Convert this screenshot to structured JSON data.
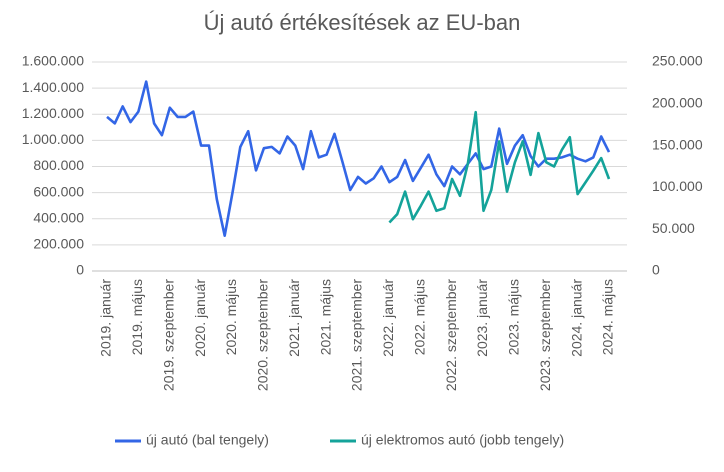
{
  "chart_data": {
    "type": "line",
    "title": "Új autó értékesítések az EU-ban",
    "categories": [
      "2019. január",
      null,
      null,
      null,
      "2019. május",
      null,
      null,
      null,
      "2019. szeptember",
      null,
      null,
      null,
      "2020. január",
      null,
      null,
      null,
      "2020. május",
      null,
      null,
      null,
      "2020. szeptember",
      null,
      null,
      null,
      "2021. január",
      null,
      null,
      null,
      "2021. május",
      null,
      null,
      null,
      "2021. szeptember",
      null,
      null,
      null,
      "2022. január",
      null,
      null,
      null,
      "2022. május",
      null,
      null,
      null,
      "2022. szeptember",
      null,
      null,
      null,
      "2023. január",
      null,
      null,
      null,
      "2023. május",
      null,
      null,
      null,
      "2023. szeptember",
      null,
      null,
      null,
      "2024. január",
      null,
      null,
      null,
      "2024. május"
    ],
    "series": [
      {
        "name": "új autó (bal tengely)",
        "color": "#3366e6",
        "values": [
          1180000,
          1130000,
          1260000,
          1140000,
          1220000,
          1450000,
          1130000,
          1040000,
          1250000,
          1180000,
          1180000,
          1220000,
          960000,
          960000,
          550000,
          270000,
          600000,
          950000,
          1070000,
          770000,
          940000,
          950000,
          900000,
          1030000,
          960000,
          780000,
          1070000,
          870000,
          890000,
          1050000,
          840000,
          620000,
          720000,
          670000,
          710000,
          800000,
          680000,
          720000,
          850000,
          690000,
          790000,
          890000,
          740000,
          650000,
          800000,
          740000,
          820000,
          900000,
          780000,
          800000,
          1090000,
          820000,
          960000,
          1040000,
          880000,
          800000,
          860000,
          860000,
          870000,
          890000,
          860000,
          840000,
          870000,
          1030000,
          910000
        ]
      },
      {
        "name": "új elektromos autó (jobb tengely)",
        "color": "#14a39a",
        "axis": "y2",
        "values": [
          null,
          null,
          null,
          null,
          null,
          null,
          null,
          null,
          null,
          null,
          null,
          null,
          null,
          null,
          null,
          null,
          null,
          null,
          null,
          null,
          null,
          null,
          null,
          null,
          null,
          null,
          null,
          null,
          null,
          null,
          null,
          null,
          null,
          null,
          null,
          null,
          58000,
          68000,
          95000,
          62000,
          78000,
          95000,
          72000,
          75000,
          110000,
          90000,
          128000,
          190000,
          72000,
          97000,
          155000,
          95000,
          130000,
          155000,
          115000,
          165000,
          130000,
          125000,
          145000,
          160000,
          92000,
          106000,
          120000,
          135000,
          110000
        ]
      }
    ],
    "ylim": [
      0,
      1600000
    ],
    "yticks": [
      0,
      {
        "value": 200000,
        "label": "200.000"
      },
      {
        "value": 400000,
        "label": "400.000"
      },
      {
        "value": 600000,
        "label": "600.000"
      },
      {
        "value": 800000,
        "label": "800.000"
      },
      {
        "value": 1000000,
        "label": "1.000.000"
      },
      {
        "value": 1200000,
        "label": "1.200.000"
      },
      {
        "value": 1400000,
        "label": "1.400.000"
      },
      {
        "value": 1600000,
        "label": "1.600.000"
      }
    ],
    "y2lim": [
      0,
      250000
    ],
    "y2ticks": [
      0,
      {
        "value": 50000,
        "label": "50.000"
      },
      {
        "value": 100000,
        "label": "100.000"
      },
      {
        "value": 150000,
        "label": "150.000"
      },
      {
        "value": 200000,
        "label": "200.000"
      },
      {
        "value": 250000,
        "label": "250.000"
      }
    ],
    "grid": true
  }
}
